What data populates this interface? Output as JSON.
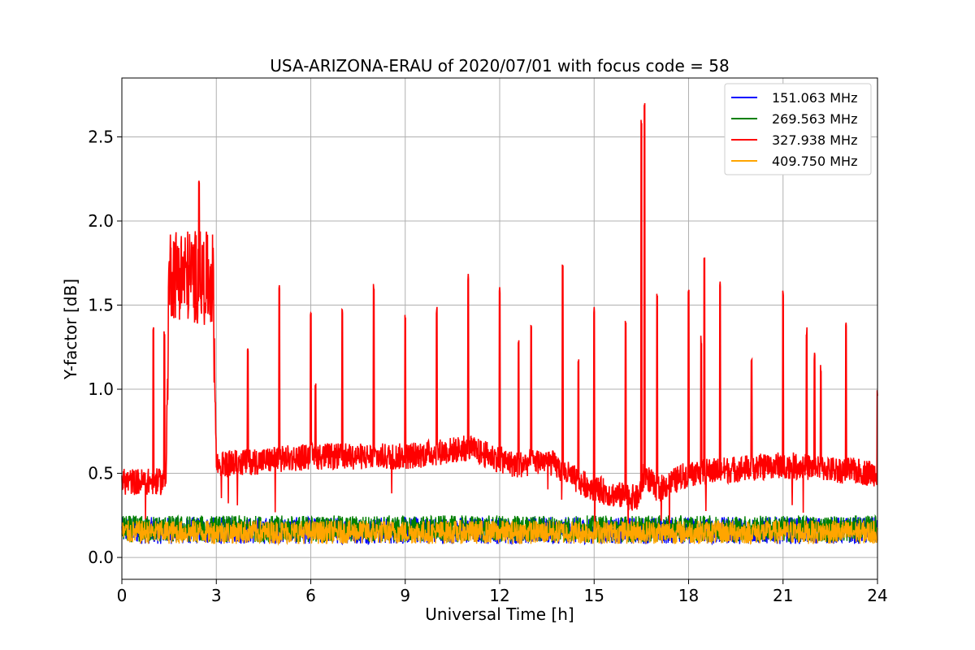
{
  "chart_data": {
    "type": "line",
    "title": "USA-ARIZONA-ERAU of 2020/07/01 with focus code = 58",
    "xlabel": "Universal Time [h]",
    "ylabel": "Y-factor [dB]",
    "xlim": [
      0,
      24
    ],
    "ylim": [
      -0.13,
      2.85
    ],
    "xticks": [
      0,
      3,
      6,
      9,
      12,
      15,
      18,
      21,
      24
    ],
    "yticks": [
      0.0,
      0.5,
      1.0,
      1.5,
      2.0,
      2.5
    ],
    "xtick_labels": [
      "0",
      "3",
      "6",
      "9",
      "12",
      "15",
      "18",
      "21",
      "24"
    ],
    "ytick_labels": [
      "0.0",
      "0.5",
      "1.0",
      "1.5",
      "2.0",
      "2.5"
    ],
    "grid": true,
    "legend_position": "top-right",
    "series": [
      {
        "name": "151.063 MHz",
        "color": "#0000ff",
        "baseline": 0.16,
        "noise": 0.08,
        "keypoints": [
          [
            0,
            0.16
          ],
          [
            24,
            0.16
          ]
        ],
        "spikes": []
      },
      {
        "name": "269.563 MHz",
        "color": "#008000",
        "baseline": 0.17,
        "noise": 0.08,
        "keypoints": [
          [
            0,
            0.17
          ],
          [
            24,
            0.17
          ]
        ],
        "spikes": []
      },
      {
        "name": "327.938 MHz",
        "color": "#ff0000",
        "baseline": 0.55,
        "noise": 0.08,
        "keypoints": [
          [
            0,
            0.45
          ],
          [
            1.4,
            0.45
          ],
          [
            1.5,
            1.7
          ],
          [
            2.9,
            1.65
          ],
          [
            3.0,
            0.55
          ],
          [
            6,
            0.6
          ],
          [
            9,
            0.6
          ],
          [
            11,
            0.65
          ],
          [
            12.5,
            0.55
          ],
          [
            13.5,
            0.58
          ],
          [
            14.5,
            0.45
          ],
          [
            15.5,
            0.38
          ],
          [
            16.4,
            0.35
          ],
          [
            16.6,
            0.5
          ],
          [
            17,
            0.4
          ],
          [
            18,
            0.5
          ],
          [
            21,
            0.55
          ],
          [
            24,
            0.5
          ]
        ],
        "spikes": [
          [
            1.0,
            1.4
          ],
          [
            1.35,
            1.36
          ],
          [
            2.45,
            2.24
          ],
          [
            4.0,
            1.25
          ],
          [
            5.0,
            1.63
          ],
          [
            6.0,
            1.49
          ],
          [
            6.15,
            1.06
          ],
          [
            7.0,
            1.5
          ],
          [
            8.0,
            1.63
          ],
          [
            9.0,
            1.45
          ],
          [
            10.0,
            1.49
          ],
          [
            11.0,
            1.69
          ],
          [
            12.0,
            1.61
          ],
          [
            12.6,
            1.31
          ],
          [
            13.0,
            1.38
          ],
          [
            14.0,
            1.78
          ],
          [
            14.5,
            1.19
          ],
          [
            15.0,
            1.5
          ],
          [
            16.0,
            1.42
          ],
          [
            16.5,
            2.62
          ],
          [
            16.6,
            2.72
          ],
          [
            17.0,
            1.58
          ],
          [
            18.0,
            1.6
          ],
          [
            18.4,
            1.32
          ],
          [
            18.5,
            1.8
          ],
          [
            19.0,
            1.65
          ],
          [
            20.0,
            1.19
          ],
          [
            21.0,
            1.6
          ],
          [
            21.75,
            1.37
          ],
          [
            22.0,
            1.22
          ],
          [
            22.2,
            1.15
          ],
          [
            23.0,
            1.42
          ],
          [
            24.0,
            1.0
          ]
        ]
      },
      {
        "name": "409.750 MHz",
        "color": "#ffa500",
        "baseline": 0.15,
        "noise": 0.07,
        "keypoints": [
          [
            0,
            0.15
          ],
          [
            24,
            0.15
          ]
        ],
        "spikes": []
      }
    ]
  }
}
